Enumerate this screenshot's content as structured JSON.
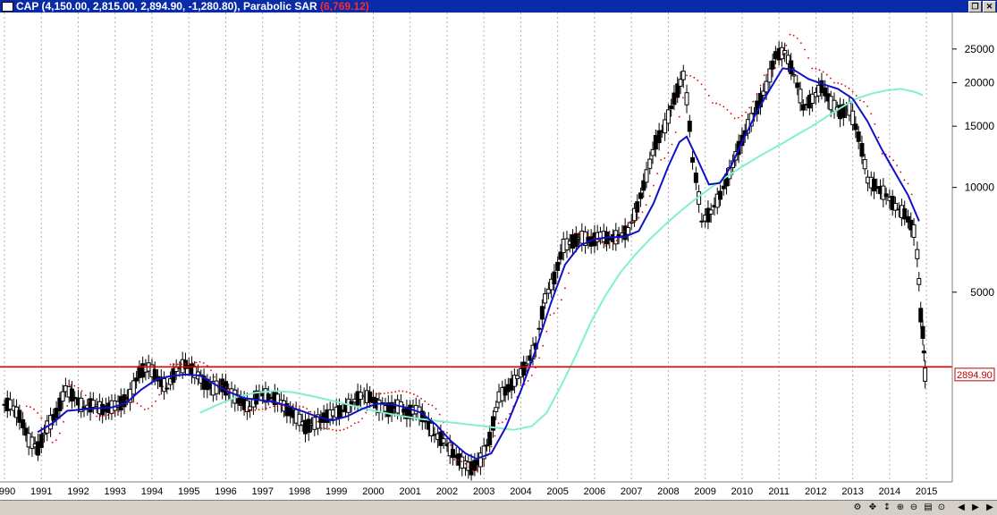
{
  "window": {
    "symbol": "CAP",
    "ohlc_text": "(4,150.00, 2,815.00, 2,894.90, -1,280.80),",
    "indicator_name": "Parabolic SAR",
    "indicator_value_text": "(6,769.12)"
  },
  "colors": {
    "candle": "#000000",
    "ma_fast": "#1010c8",
    "ma_slow": "#80f0d0",
    "sar": "#e00000",
    "hline": "#e00000",
    "titlebar": "#0a2ba8"
  },
  "icons": [
    "window-icon",
    "restore-icon",
    "close-icon",
    "scroll-left-icon",
    "scroll-right-icon",
    "zoom-in-icon",
    "zoom-out-icon",
    "bars-icon",
    "crosshair-icon",
    "settings-icon"
  ],
  "chart_data": {
    "type": "candlestick",
    "scale": "log",
    "ylim": [
      1450,
      30000
    ],
    "xlim": [
      1990.0,
      2015.7
    ],
    "y_ticks": [
      5000,
      10000,
      15000,
      20000,
      25000
    ],
    "x_tick_labels": [
      "1990",
      "1991",
      "1992",
      "1993",
      "1994",
      "1995",
      "1996",
      "1997",
      "1998",
      "1999",
      "2000",
      "2001",
      "2002",
      "2003",
      "2004",
      "2005",
      "2006",
      "2007",
      "2008",
      "2009",
      "2010",
      "2011",
      "2012",
      "2013",
      "2014",
      "2015"
    ],
    "last_price_label": "2894.90",
    "horizontal_line": 3050,
    "grid": "vertical dotted",
    "series": [
      {
        "kind": "candles",
        "points": [
          [
            1990.0,
            2380
          ],
          [
            1990.25,
            2200
          ],
          [
            1990.5,
            1880
          ],
          [
            1990.75,
            1780
          ],
          [
            1991.0,
            2050
          ],
          [
            1991.25,
            2250
          ],
          [
            1991.5,
            2640
          ],
          [
            1991.75,
            2480
          ],
          [
            1992.0,
            2320
          ],
          [
            1992.25,
            2390
          ],
          [
            1992.5,
            2300
          ],
          [
            1992.75,
            2340
          ],
          [
            1993.0,
            2400
          ],
          [
            1993.25,
            2520
          ],
          [
            1993.5,
            2950
          ],
          [
            1993.75,
            3050
          ],
          [
            1994.0,
            2820
          ],
          [
            1994.25,
            2650
          ],
          [
            1994.5,
            3000
          ],
          [
            1994.75,
            3100
          ],
          [
            1995.0,
            2950
          ],
          [
            1995.25,
            2750
          ],
          [
            1995.5,
            2650
          ],
          [
            1995.75,
            2700
          ],
          [
            1996.0,
            2550
          ],
          [
            1996.25,
            2420
          ],
          [
            1996.5,
            2320
          ],
          [
            1996.75,
            2580
          ],
          [
            1997.0,
            2500
          ],
          [
            1997.25,
            2470
          ],
          [
            1997.5,
            2300
          ],
          [
            1997.75,
            2200
          ],
          [
            1998.0,
            2050
          ],
          [
            1998.25,
            2100
          ],
          [
            1998.5,
            2180
          ],
          [
            1998.75,
            2250
          ],
          [
            1999.0,
            2280
          ],
          [
            1999.25,
            2400
          ],
          [
            1999.5,
            2520
          ],
          [
            1999.75,
            2500
          ],
          [
            2000.0,
            2350
          ],
          [
            2000.25,
            2300
          ],
          [
            2000.5,
            2350
          ],
          [
            2000.75,
            2250
          ],
          [
            2001.0,
            2300
          ],
          [
            2001.25,
            2150
          ],
          [
            2001.5,
            1950
          ],
          [
            2001.75,
            1870
          ],
          [
            2002.0,
            1720
          ],
          [
            2002.25,
            1620
          ],
          [
            2002.5,
            1560
          ],
          [
            2002.75,
            1650
          ],
          [
            2003.0,
            1900
          ],
          [
            2003.25,
            2500
          ],
          [
            2003.5,
            2650
          ],
          [
            2003.75,
            2850
          ],
          [
            2004.0,
            3100
          ],
          [
            2004.25,
            3500
          ],
          [
            2004.5,
            4800
          ],
          [
            2004.75,
            5500
          ],
          [
            2005.0,
            6800
          ],
          [
            2005.25,
            7000
          ],
          [
            2005.5,
            7200
          ],
          [
            2005.75,
            7000
          ],
          [
            2006.0,
            7300
          ],
          [
            2006.25,
            7100
          ],
          [
            2006.5,
            7250
          ],
          [
            2006.75,
            7500
          ],
          [
            2007.0,
            8800
          ],
          [
            2007.25,
            10800
          ],
          [
            2007.5,
            13500
          ],
          [
            2007.75,
            15000
          ],
          [
            2008.0,
            18000
          ],
          [
            2008.25,
            21000
          ],
          [
            2008.5,
            12000
          ],
          [
            2008.75,
            8000
          ],
          [
            2009.0,
            8500
          ],
          [
            2009.25,
            9500
          ],
          [
            2009.5,
            11000
          ],
          [
            2009.75,
            13000
          ],
          [
            2010.0,
            15000
          ],
          [
            2010.25,
            17000
          ],
          [
            2010.5,
            19500
          ],
          [
            2010.75,
            24000
          ],
          [
            2011.0,
            24500
          ],
          [
            2011.25,
            21000
          ],
          [
            2011.5,
            17000
          ],
          [
            2011.75,
            18000
          ],
          [
            2012.0,
            19500
          ],
          [
            2012.25,
            17500
          ],
          [
            2012.5,
            16500
          ],
          [
            2012.75,
            16800
          ],
          [
            2013.0,
            14000
          ],
          [
            2013.25,
            10500
          ],
          [
            2013.5,
            10000
          ],
          [
            2013.75,
            9500
          ],
          [
            2014.0,
            8800
          ],
          [
            2014.25,
            8400
          ],
          [
            2014.5,
            7500
          ],
          [
            2014.75,
            4300
          ],
          [
            2014.9,
            2900
          ]
        ]
      },
      {
        "kind": "ma_fast",
        "values": [
          [
            1990.9,
            1980
          ],
          [
            1991.3,
            2100
          ],
          [
            1991.7,
            2280
          ],
          [
            1992.1,
            2300
          ],
          [
            1992.5,
            2320
          ],
          [
            1992.9,
            2330
          ],
          [
            1993.3,
            2400
          ],
          [
            1993.7,
            2620
          ],
          [
            1994.1,
            2800
          ],
          [
            1994.5,
            2870
          ],
          [
            1994.9,
            2900
          ],
          [
            1995.3,
            2880
          ],
          [
            1995.7,
            2720
          ],
          [
            1996.1,
            2580
          ],
          [
            1996.5,
            2480
          ],
          [
            1996.9,
            2450
          ],
          [
            1997.3,
            2420
          ],
          [
            1997.7,
            2350
          ],
          [
            1998.1,
            2270
          ],
          [
            1998.5,
            2190
          ],
          [
            1998.9,
            2140
          ],
          [
            1999.3,
            2200
          ],
          [
            1999.7,
            2310
          ],
          [
            2000.1,
            2390
          ],
          [
            2000.5,
            2380
          ],
          [
            2000.9,
            2330
          ],
          [
            2001.3,
            2250
          ],
          [
            2001.7,
            2080
          ],
          [
            2002.1,
            1870
          ],
          [
            2002.5,
            1720
          ],
          [
            2002.8,
            1660
          ],
          [
            2003.2,
            1720
          ],
          [
            2003.6,
            2050
          ],
          [
            2004.0,
            2600
          ],
          [
            2004.4,
            3400
          ],
          [
            2004.8,
            4600
          ],
          [
            2005.2,
            6000
          ],
          [
            2005.6,
            6800
          ],
          [
            2006.0,
            7100
          ],
          [
            2006.4,
            7200
          ],
          [
            2006.8,
            7200
          ],
          [
            2007.2,
            7500
          ],
          [
            2007.6,
            9000
          ],
          [
            2008.0,
            11500
          ],
          [
            2008.3,
            13500
          ],
          [
            2008.5,
            14000
          ],
          [
            2008.8,
            12000
          ],
          [
            2009.1,
            10200
          ],
          [
            2009.4,
            10300
          ],
          [
            2009.7,
            11500
          ],
          [
            2010.0,
            13500
          ],
          [
            2010.4,
            16500
          ],
          [
            2010.8,
            19500
          ],
          [
            2011.1,
            22000
          ],
          [
            2011.4,
            21800
          ],
          [
            2011.8,
            20500
          ],
          [
            2012.2,
            19800
          ],
          [
            2012.6,
            19200
          ],
          [
            2013.0,
            18000
          ],
          [
            2013.4,
            15500
          ],
          [
            2013.8,
            12800
          ],
          [
            2014.2,
            10800
          ],
          [
            2014.5,
            9500
          ],
          [
            2014.8,
            8000
          ]
        ]
      },
      {
        "kind": "ma_slow",
        "values": [
          [
            1995.3,
            2250
          ],
          [
            1995.8,
            2380
          ],
          [
            1996.3,
            2500
          ],
          [
            1996.8,
            2570
          ],
          [
            1997.3,
            2600
          ],
          [
            1997.8,
            2580
          ],
          [
            1998.3,
            2520
          ],
          [
            1998.8,
            2450
          ],
          [
            1999.3,
            2380
          ],
          [
            1999.8,
            2310
          ],
          [
            2000.3,
            2250
          ],
          [
            2000.8,
            2200
          ],
          [
            2001.3,
            2160
          ],
          [
            2001.8,
            2130
          ],
          [
            2002.3,
            2100
          ],
          [
            2002.8,
            2070
          ],
          [
            2003.3,
            2040
          ],
          [
            2003.8,
            2010
          ],
          [
            2004.3,
            2060
          ],
          [
            2004.7,
            2250
          ],
          [
            2005.1,
            2700
          ],
          [
            2005.5,
            3300
          ],
          [
            2005.9,
            4100
          ],
          [
            2006.3,
            4900
          ],
          [
            2006.7,
            5700
          ],
          [
            2007.1,
            6400
          ],
          [
            2007.5,
            7100
          ],
          [
            2007.9,
            7800
          ],
          [
            2008.3,
            8500
          ],
          [
            2008.7,
            9200
          ],
          [
            2009.1,
            9900
          ],
          [
            2009.5,
            10600
          ],
          [
            2009.9,
            11300
          ],
          [
            2010.3,
            12000
          ],
          [
            2010.7,
            12700
          ],
          [
            2011.1,
            13400
          ],
          [
            2011.5,
            14200
          ],
          [
            2011.9,
            15000
          ],
          [
            2012.3,
            16000
          ],
          [
            2012.7,
            17000
          ],
          [
            2013.1,
            18000
          ],
          [
            2013.5,
            18600
          ],
          [
            2013.9,
            19000
          ],
          [
            2014.3,
            19200
          ],
          [
            2014.7,
            18800
          ],
          [
            2014.9,
            18400
          ]
        ]
      },
      {
        "kind": "sar",
        "values": [
          [
            1990.6,
            2350
          ],
          [
            1991.3,
            1850
          ],
          [
            1991.8,
            2700
          ],
          [
            1992.5,
            2200
          ],
          [
            1993.0,
            2250
          ],
          [
            1993.3,
            2450
          ],
          [
            1993.8,
            2300
          ],
          [
            1994.5,
            3100
          ],
          [
            1995.3,
            3150
          ],
          [
            1995.8,
            2700
          ],
          [
            1996.5,
            2280
          ],
          [
            1997.3,
            2350
          ],
          [
            1998.0,
            2350
          ],
          [
            1998.6,
            2030
          ],
          [
            1999.0,
            2000
          ],
          [
            1999.5,
            2100
          ],
          [
            2000.0,
            2550
          ],
          [
            2000.7,
            2600
          ],
          [
            2001.5,
            2380
          ],
          [
            2002.2,
            1650
          ],
          [
            2002.7,
            1530
          ],
          [
            2003.4,
            2100
          ],
          [
            2004.0,
            2700
          ],
          [
            2004.8,
            4300
          ],
          [
            2005.5,
            7400
          ],
          [
            2006.3,
            6800
          ],
          [
            2006.9,
            7800
          ],
          [
            2007.8,
            12000
          ],
          [
            2008.5,
            21000
          ],
          [
            2009.2,
            17500
          ],
          [
            2009.8,
            15800
          ],
          [
            2010.6,
            21000
          ],
          [
            2011.3,
            27500
          ],
          [
            2011.9,
            22000
          ],
          [
            2012.5,
            20000
          ],
          [
            2013.2,
            17800
          ],
          [
            2013.8,
            12500
          ],
          [
            2014.4,
            10500
          ],
          [
            2014.8,
            7200
          ]
        ]
      }
    ]
  }
}
